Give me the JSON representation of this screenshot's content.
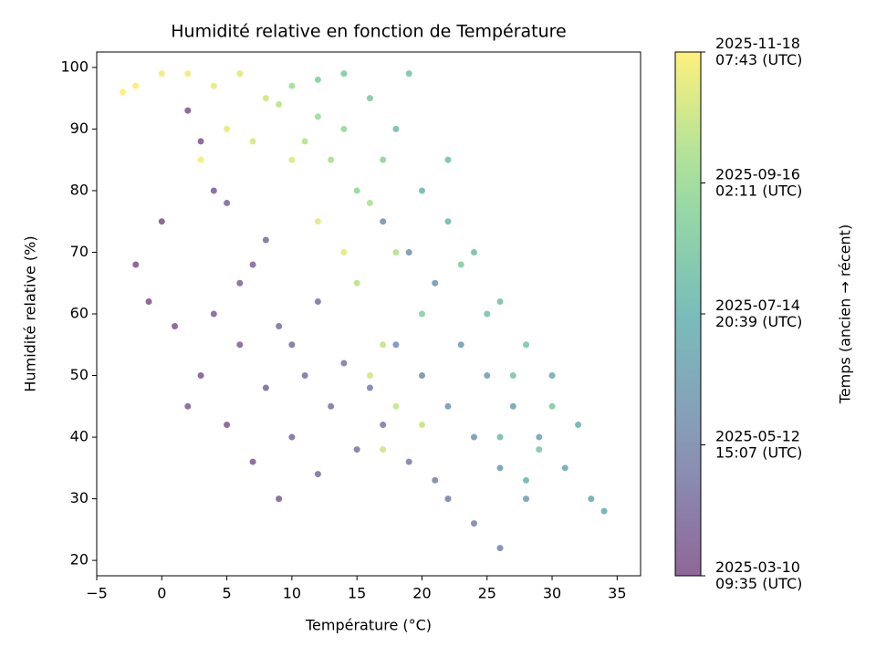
{
  "chart_data": {
    "type": "scatter",
    "title": "Humidité relative en fonction de Température",
    "xlabel": "Température (°C)",
    "ylabel": "Humidité relative (%)",
    "xlim": [
      -5,
      36.8
    ],
    "ylim": [
      17.5,
      102.5
    ],
    "xticks": [
      {
        "value": -5,
        "label": "−5"
      },
      0,
      5,
      10,
      15,
      20,
      25,
      30,
      35
    ],
    "yticks": [
      20,
      30,
      40,
      50,
      60,
      70,
      80,
      90,
      100
    ],
    "colormap": "viridis",
    "alpha": 0.6,
    "colorbar": {
      "label": "Temps (ancien → récent)",
      "lim": [
        "2025-03-10 09:35",
        "2025-11-18 07:43"
      ],
      "ticks": [
        {
          "value": "2025-03-10 09:35",
          "label": "2025-03-10\n09:35 (UTC)"
        },
        {
          "value": "2025-05-12 15:07",
          "label": "2025-05-12\n15:07 (UTC)"
        },
        {
          "value": "2025-07-14 20:39",
          "label": "2025-07-14\n20:39 (UTC)"
        },
        {
          "value": "2025-09-16 02:11",
          "label": "2025-09-16\n02:11 (UTC)"
        },
        {
          "value": "2025-11-18 07:43",
          "label": "2025-11-18\n07:43 (UTC)"
        }
      ]
    },
    "x": [
      -2,
      -1,
      1,
      3,
      5,
      7,
      9,
      2,
      4,
      6,
      0,
      3,
      2,
      5,
      8,
      10,
      12,
      6,
      9,
      11,
      13,
      15,
      14,
      17,
      19,
      21,
      22,
      24,
      26,
      16,
      12,
      8,
      4,
      7,
      10,
      18,
      20,
      22,
      24,
      26,
      28,
      23,
      25,
      27,
      29,
      31,
      33,
      21,
      19,
      17,
      30,
      34,
      32,
      20,
      22,
      24,
      26,
      28,
      18,
      16,
      14,
      12,
      22,
      25,
      27,
      29,
      30,
      19,
      23,
      20,
      17,
      15,
      26,
      28,
      14,
      12,
      10,
      13,
      16,
      18,
      11,
      9,
      15,
      17,
      18,
      20,
      8,
      6,
      4,
      2,
      0,
      -2,
      -3,
      7,
      10,
      12,
      14,
      17,
      16,
      3,
      5
    ],
    "y": [
      68,
      62,
      58,
      50,
      42,
      36,
      30,
      45,
      60,
      55,
      75,
      88,
      93,
      78,
      48,
      40,
      34,
      65,
      58,
      50,
      45,
      38,
      52,
      42,
      36,
      33,
      30,
      26,
      22,
      48,
      62,
      72,
      80,
      68,
      55,
      55,
      50,
      45,
      40,
      35,
      30,
      55,
      50,
      45,
      40,
      35,
      30,
      65,
      70,
      75,
      50,
      28,
      42,
      80,
      75,
      70,
      62,
      55,
      90,
      95,
      99,
      98,
      85,
      60,
      50,
      38,
      45,
      99,
      68,
      60,
      85,
      80,
      40,
      33,
      90,
      92,
      97,
      85,
      78,
      70,
      88,
      94,
      65,
      55,
      45,
      42,
      95,
      99,
      97,
      99,
      99,
      97,
      96,
      88,
      85,
      75,
      70,
      38,
      50,
      85,
      90
    ],
    "c": [
      "2025-03-12",
      "2025-03-15",
      "2025-03-18",
      "2025-03-20",
      "2025-03-22",
      "2025-03-25",
      "2025-03-26",
      "2025-03-28",
      "2025-03-30",
      "2025-04-02",
      "2025-03-14",
      "2025-03-16",
      "2025-03-17",
      "2025-04-05",
      "2025-04-08",
      "2025-04-10",
      "2025-04-12",
      "2025-04-03",
      "2025-04-15",
      "2025-04-18",
      "2025-04-20",
      "2025-04-22",
      "2025-04-25",
      "2025-04-28",
      "2025-05-01",
      "2025-05-05",
      "2025-05-03",
      "2025-05-08",
      "2025-05-10",
      "2025-05-02",
      "2025-04-20",
      "2025-04-10",
      "2025-03-25",
      "2025-04-06",
      "2025-04-14",
      "2025-05-20",
      "2025-05-25",
      "2025-06-01",
      "2025-06-05",
      "2025-06-10",
      "2025-06-15",
      "2025-06-08",
      "2025-06-12",
      "2025-06-18",
      "2025-06-20",
      "2025-06-25",
      "2025-07-01",
      "2025-06-03",
      "2025-05-28",
      "2025-05-22",
      "2025-07-05",
      "2025-07-03",
      "2025-07-10",
      "2025-07-20",
      "2025-07-25",
      "2025-08-01",
      "2025-08-05",
      "2025-08-10",
      "2025-07-28",
      "2025-08-15",
      "2025-08-20",
      "2025-08-25",
      "2025-08-02",
      "2025-08-08",
      "2025-08-12",
      "2025-08-14",
      "2025-08-18",
      "2025-08-10",
      "2025-08-22",
      "2025-08-28",
      "2025-09-05",
      "2025-09-10",
      "2025-07-30",
      "2025-07-18",
      "2025-09-15",
      "2025-09-20",
      "2025-09-25",
      "2025-09-28",
      "2025-10-02",
      "2025-10-05",
      "2025-10-08",
      "2025-10-12",
      "2025-10-10",
      "2025-10-15",
      "2025-10-18",
      "2025-10-16",
      "2025-10-25",
      "2025-11-01",
      "2025-11-05",
      "2025-11-08",
      "2025-11-10",
      "2025-11-15",
      "2025-11-18",
      "2025-10-28",
      "2025-10-30",
      "2025-11-02",
      "2025-11-03",
      "2025-10-22",
      "2025-10-24",
      "2025-11-12",
      "2025-11-06"
    ]
  }
}
